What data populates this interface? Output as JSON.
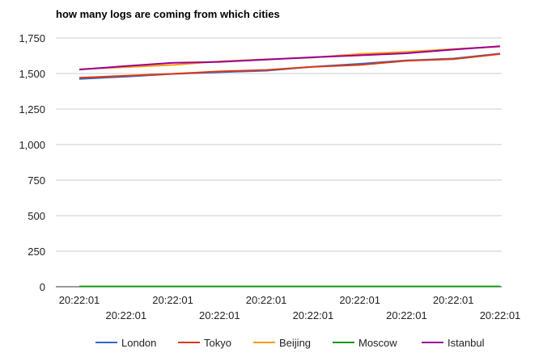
{
  "chart_data": {
    "type": "line",
    "title": "how many logs are coming from which cities",
    "xlabel": "",
    "ylabel": "",
    "categories": [
      "20:22:01",
      "20:22:01",
      "20:22:01",
      "20:22:01",
      "20:22:01",
      "20:22:01",
      "20:22:01",
      "20:22:01",
      "20:22:01",
      "20:22:01"
    ],
    "ylim": [
      0,
      1750
    ],
    "yticks": [
      0,
      250,
      500,
      750,
      1000,
      1250,
      1500,
      1750
    ],
    "ytick_labels": [
      "0",
      "250",
      "500",
      "750",
      "1,000",
      "1,250",
      "1,500",
      "1,750"
    ],
    "grid": true,
    "legend_position": "bottom",
    "series": [
      {
        "name": "London",
        "color": "#3366cc",
        "values": [
          1462,
          1478,
          1497,
          1509,
          1520,
          1548,
          1568,
          1592,
          1605,
          1640
        ]
      },
      {
        "name": "Tokyo",
        "color": "#dc3912",
        "values": [
          1470,
          1484,
          1498,
          1515,
          1525,
          1547,
          1560,
          1590,
          1601,
          1637
        ]
      },
      {
        "name": "Beijing",
        "color": "#ff9900",
        "values": [
          1530,
          1545,
          1560,
          1585,
          1600,
          1612,
          1638,
          1652,
          1672,
          1690
        ]
      },
      {
        "name": "Moscow",
        "color": "#109618",
        "values": [
          2,
          2,
          2,
          2,
          2,
          2,
          2,
          2,
          2,
          2
        ]
      },
      {
        "name": "Istanbul",
        "color": "#990099",
        "values": [
          1528,
          1552,
          1575,
          1582,
          1598,
          1614,
          1628,
          1642,
          1668,
          1692
        ]
      }
    ]
  }
}
